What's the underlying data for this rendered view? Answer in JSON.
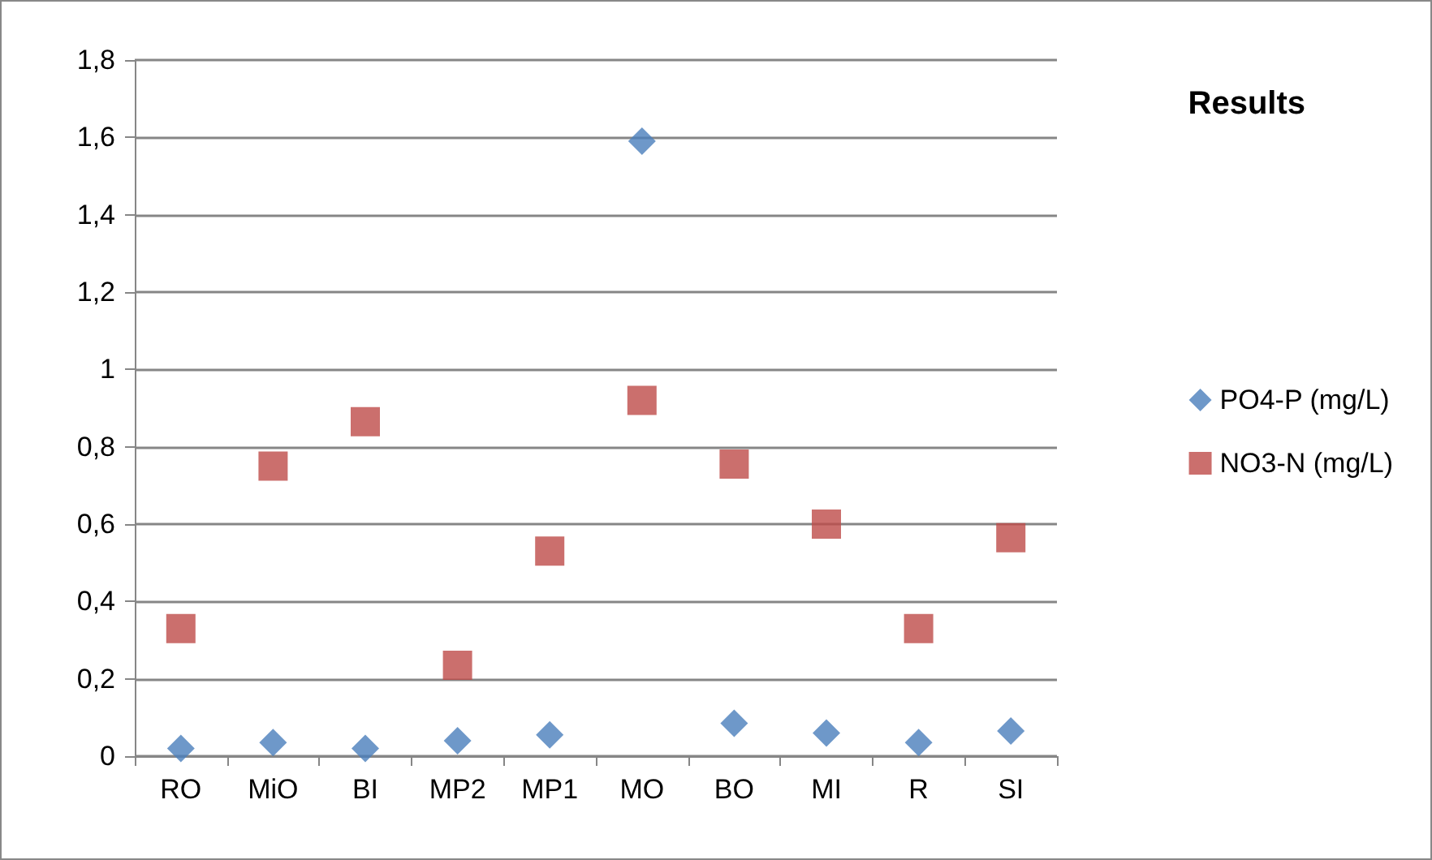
{
  "chart_data": {
    "type": "scatter",
    "title": "Results",
    "categories": [
      "RO",
      "MiO",
      "BI",
      "MP2",
      "MP1",
      "MO",
      "BO",
      "MI",
      "R",
      "SI"
    ],
    "series": [
      {
        "name": "PO4-P (mg/L)",
        "color": "#4a7ebb",
        "marker": "diamond",
        "values": [
          0.02,
          0.035,
          0.02,
          0.04,
          0.055,
          1.59,
          0.085,
          0.06,
          0.035,
          0.065
        ]
      },
      {
        "name": "NO3-N (mg/L)",
        "color": "#be4b48",
        "marker": "square",
        "values": [
          0.33,
          0.75,
          0.865,
          0.235,
          0.53,
          0.92,
          0.755,
          0.6,
          0.33,
          0.565
        ]
      }
    ],
    "ylim": [
      0,
      1.8
    ],
    "yticks": [
      {
        "value": 0,
        "label": "0"
      },
      {
        "value": 0.2,
        "label": "0,2"
      },
      {
        "value": 0.4,
        "label": "0,4"
      },
      {
        "value": 0.6,
        "label": "0,6"
      },
      {
        "value": 0.8,
        "label": "0,8"
      },
      {
        "value": 1,
        "label": "1"
      },
      {
        "value": 1.2,
        "label": "1,2"
      },
      {
        "value": 1.4,
        "label": "1,4"
      },
      {
        "value": 1.6,
        "label": "1,6"
      },
      {
        "value": 1.8,
        "label": "1,8"
      }
    ],
    "grid": "y",
    "legend": "right"
  }
}
